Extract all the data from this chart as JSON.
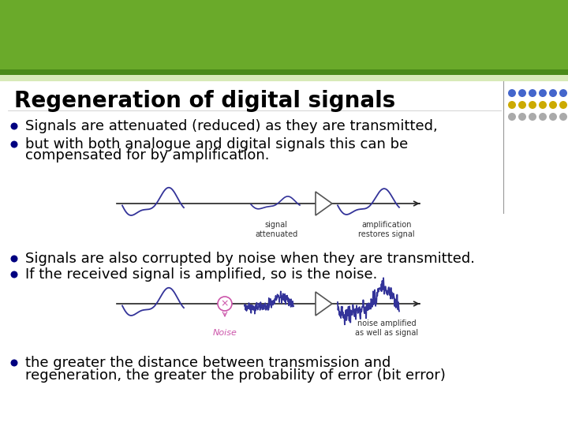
{
  "title": "Regeneration of digital signals",
  "bg_color": "#FFFFFF",
  "header_color": "#6aaa2a",
  "title_color": "#000000",
  "title_fontsize": 20,
  "bullet_fontsize": 13,
  "bullet_color": "#000000",
  "bullet_dot_color": "#000080",
  "signal_color": "#333399",
  "diagram1_label_left": "signal\nattenuated",
  "diagram1_label_right": "amplification\nrestores signal",
  "diagram2_label_noise": "Noise",
  "diagram2_label_right": "noise amplified\nas well as signal",
  "dot_row1": "#4466cc",
  "dot_row2": "#ccaa00",
  "dot_row3": "#aaaaaa",
  "separator_color": "#999999",
  "line_color": "#222222",
  "amp_edge_color": "#555555",
  "noise_circle_color": "#cc55aa",
  "noise_label_color": "#cc55aa"
}
